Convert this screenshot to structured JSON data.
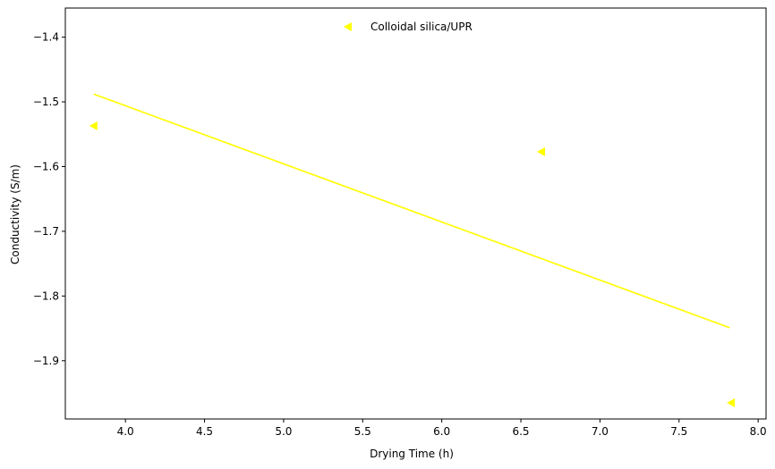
{
  "chart_data": {
    "type": "scatter",
    "xlabel": "Drying Time (h)",
    "ylabel": "Conductivity (S/m)",
    "xlim": [
      3.62,
      8.05
    ],
    "ylim": [
      -1.99,
      -1.355
    ],
    "xticks": [
      4.0,
      4.5,
      5.0,
      5.5,
      6.0,
      6.5,
      7.0,
      7.5,
      8.0
    ],
    "xtick_labels": [
      "4.0",
      "4.5",
      "5.0",
      "5.5",
      "6.0",
      "6.5",
      "7.0",
      "7.5",
      "8.0"
    ],
    "yticks": [
      -1.4,
      -1.5,
      -1.6,
      -1.7,
      -1.8,
      -1.9
    ],
    "ytick_labels": [
      "−1.4",
      "−1.5",
      "−1.6",
      "−1.7",
      "−1.8",
      "−1.9"
    ],
    "grid": false,
    "legend_position": "top-center",
    "series": [
      {
        "name": "Colloidal silica/UPR",
        "color": "#ffff00",
        "marker": "triangle-left",
        "points": [
          {
            "x": 3.8,
            "y": -1.537
          },
          {
            "x": 6.63,
            "y": -1.577
          },
          {
            "x": 7.83,
            "y": -1.965
          }
        ]
      }
    ],
    "fit_line": {
      "color": "#ffff00",
      "points": [
        {
          "x": 3.8,
          "y": -1.488
        },
        {
          "x": 7.82,
          "y": -1.849
        }
      ]
    }
  }
}
